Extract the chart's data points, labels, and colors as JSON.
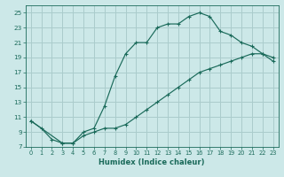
{
  "xlabel": "Humidex (Indice chaleur)",
  "ylabel": "",
  "bg_color": "#cce8e8",
  "grid_color": "#aacccc",
  "line_color": "#1a6a5a",
  "xlim": [
    -0.5,
    23.5
  ],
  "ylim": [
    7,
    26
  ],
  "xticks": [
    0,
    1,
    2,
    3,
    4,
    5,
    6,
    7,
    8,
    9,
    10,
    11,
    12,
    13,
    14,
    15,
    16,
    17,
    18,
    19,
    20,
    21,
    22,
    23
  ],
  "yticks": [
    7,
    9,
    11,
    13,
    15,
    17,
    19,
    21,
    23,
    25
  ],
  "curve1_x": [
    0,
    1,
    2,
    3,
    4,
    5,
    6,
    7,
    8,
    9,
    10,
    11,
    12,
    13,
    14,
    15,
    16,
    17,
    18,
    19,
    20,
    21,
    22,
    23
  ],
  "curve1_y": [
    10.5,
    9.5,
    8.0,
    7.5,
    7.5,
    9.0,
    9.5,
    12.5,
    16.5,
    19.5,
    21.0,
    21.0,
    23.0,
    23.5,
    23.5,
    24.5,
    25.0,
    24.5,
    22.5,
    22.0,
    21.0,
    20.5,
    19.5,
    18.5
  ],
  "curve2_x": [
    0,
    3,
    4,
    5,
    6,
    7,
    8,
    9,
    10,
    11,
    12,
    13,
    14,
    15,
    16,
    17,
    18,
    19,
    20,
    21,
    22,
    23
  ],
  "curve2_y": [
    10.5,
    7.5,
    7.5,
    8.5,
    9.0,
    9.5,
    9.5,
    10.0,
    11.0,
    12.0,
    13.0,
    14.0,
    15.0,
    16.0,
    17.0,
    17.5,
    18.0,
    18.5,
    19.0,
    19.5,
    19.5,
    19.0
  ]
}
